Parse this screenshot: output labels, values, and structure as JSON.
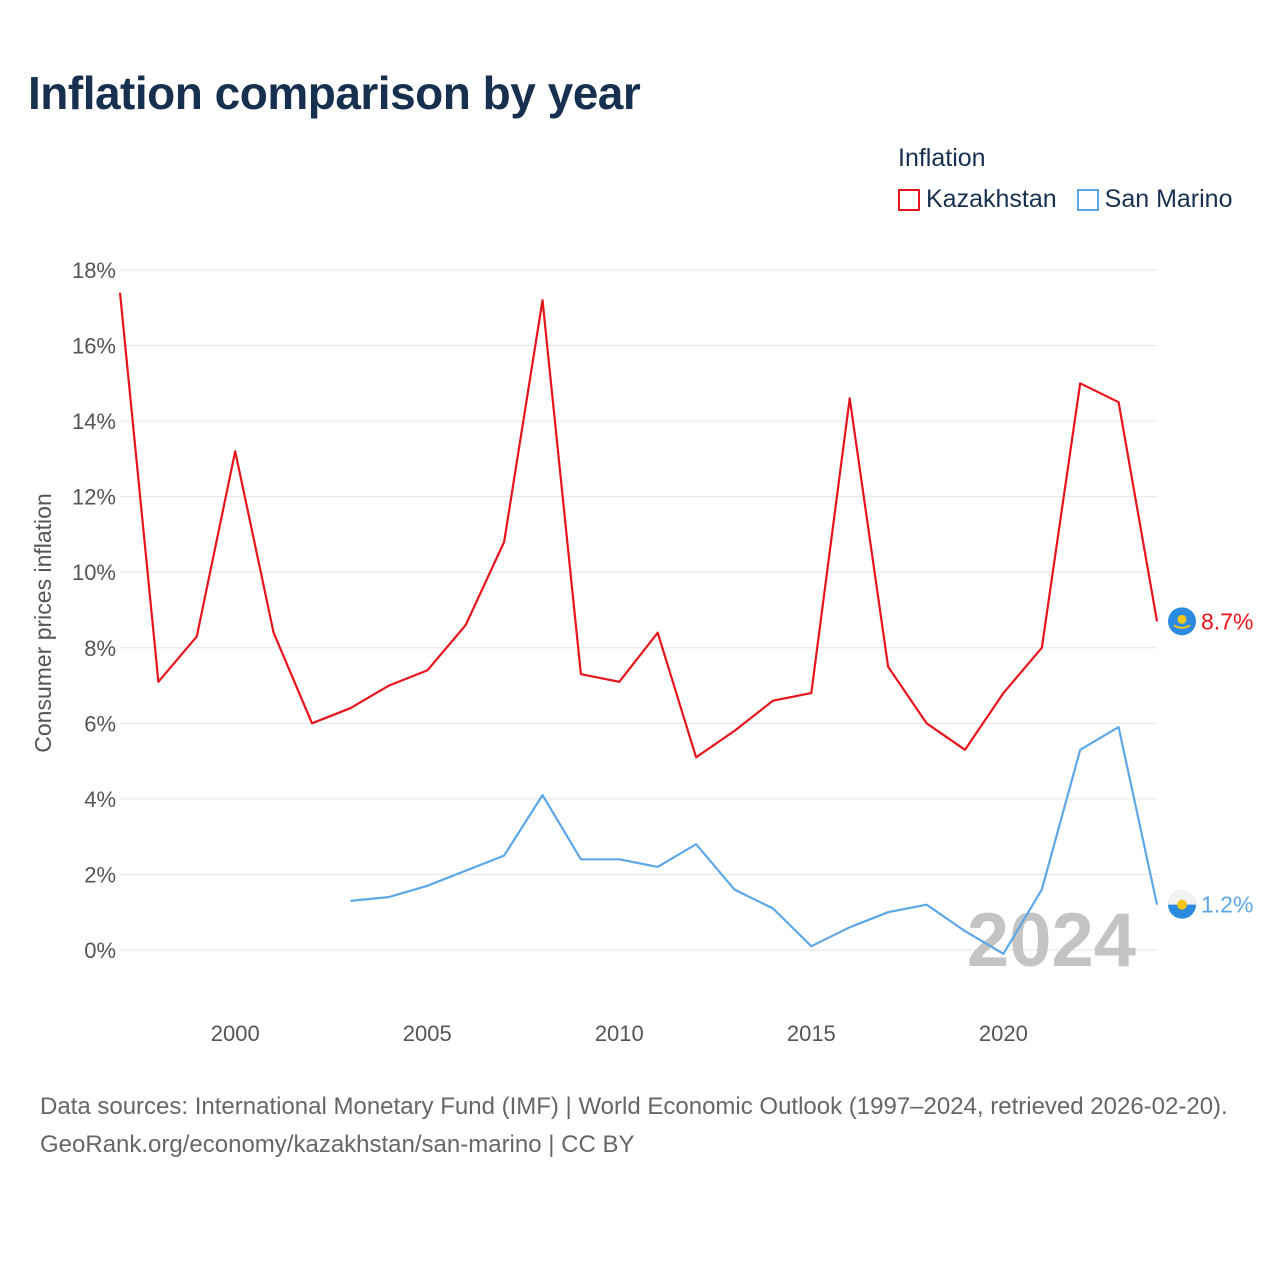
{
  "title": "Inflation comparison by year",
  "legend": {
    "title": "Inflation",
    "items": [
      {
        "label": "Kazakhstan",
        "color": "#e8141b"
      },
      {
        "label": "San Marino",
        "color": "#5ea7e6"
      }
    ]
  },
  "chart_data": {
    "type": "line",
    "title": "Inflation comparison by year",
    "xlabel": "",
    "ylabel": "Consumer prices inflation",
    "xlim": [
      1997,
      2024
    ],
    "ylim": [
      -1,
      18
    ],
    "grid": true,
    "x_ticks": [
      2000,
      2005,
      2010,
      2015,
      2020
    ],
    "y_ticks": [
      0,
      2,
      4,
      6,
      8,
      10,
      12,
      14,
      16,
      18
    ],
    "y_tick_labels": [
      "0%",
      "2%",
      "4%",
      "6%",
      "8%",
      "10%",
      "12%",
      "14%",
      "16%",
      "18%"
    ],
    "year_watermark": "2024",
    "series": [
      {
        "name": "Kazakhstan",
        "color": "#e8141b",
        "end_label": "8.7%",
        "x": [
          1997,
          1998,
          1999,
          2000,
          2001,
          2002,
          2003,
          2004,
          2005,
          2006,
          2007,
          2008,
          2009,
          2010,
          2011,
          2012,
          2013,
          2014,
          2015,
          2016,
          2017,
          2018,
          2019,
          2020,
          2021,
          2022,
          2023,
          2024
        ],
        "values": [
          17.4,
          7.1,
          8.3,
          13.2,
          8.4,
          6.0,
          6.4,
          7.0,
          7.4,
          8.6,
          10.8,
          17.2,
          7.3,
          7.1,
          8.4,
          5.1,
          5.8,
          6.6,
          6.8,
          14.6,
          7.5,
          6.0,
          5.3,
          6.8,
          8.0,
          15.0,
          14.5,
          8.7
        ]
      },
      {
        "name": "San Marino",
        "color": "#5ea7e6",
        "end_label": "1.2%",
        "x": [
          2003,
          2004,
          2005,
          2006,
          2007,
          2008,
          2009,
          2010,
          2011,
          2012,
          2013,
          2014,
          2015,
          2016,
          2017,
          2018,
          2019,
          2020,
          2021,
          2022,
          2023,
          2024
        ],
        "values": [
          1.3,
          1.4,
          1.7,
          2.1,
          2.5,
          4.1,
          2.4,
          2.4,
          2.2,
          2.8,
          1.6,
          1.1,
          0.1,
          0.6,
          1.0,
          1.2,
          0.5,
          -0.1,
          1.6,
          5.3,
          5.9,
          1.2
        ]
      }
    ]
  },
  "footer": {
    "source_line": "Data sources: International Monetary Fund (IMF) | World Economic Outlook (1997–2024, retrieved 2026-02-20).",
    "attribution": "GeoRank.org/economy/kazakhstan/san-marino | CC BY"
  }
}
